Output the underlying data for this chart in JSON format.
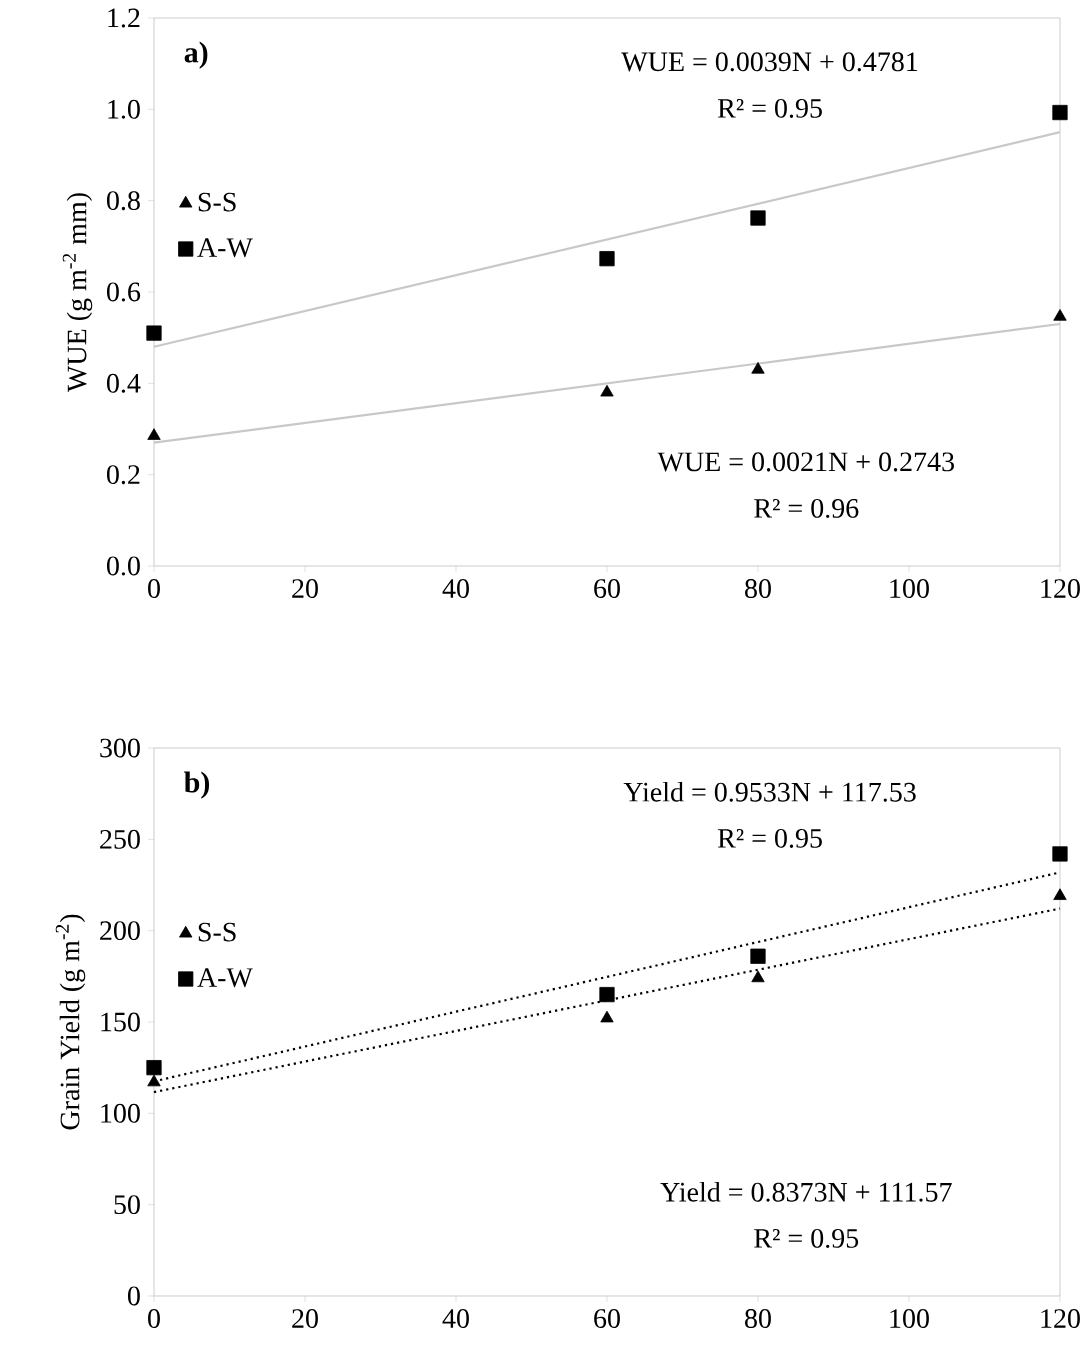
{
  "chart_data": [
    {
      "type": "scatter",
      "title": "a)",
      "ylabel": "WUE (g m$^{-2}$ mm)",
      "xlim": [
        0,
        120
      ],
      "xticks": [
        0,
        20,
        40,
        60,
        80,
        100,
        120
      ],
      "ylim": [
        0,
        1.2
      ],
      "yticks": [
        {
          "value": 0,
          "label": "0.0"
        },
        {
          "value": 0.2,
          "label": "0.2"
        },
        {
          "value": 0.4,
          "label": "0.4"
        },
        {
          "value": 0.6,
          "label": "0.6"
        },
        {
          "value": 0.8,
          "label": "0.8"
        },
        {
          "value": 1.0,
          "label": "1.0"
        },
        {
          "value": 1.2,
          "label": "1.2"
        }
      ],
      "legend": "left",
      "annotations": [
        "WUE = 0.0039N + 0.4781",
        "R² = 0.95",
        "WUE = 0.0021N + 0.2743",
        "R² = 0.96"
      ],
      "series": [
        {
          "name": "S-S",
          "marker": "triangle",
          "color": "#000000",
          "x": [
            0,
            60,
            80,
            120
          ],
          "values": [
            0.285,
            0.38,
            0.43,
            0.546
          ]
        },
        {
          "name": "A-W",
          "marker": "square",
          "color": "#000000",
          "x": [
            0,
            60,
            80,
            120
          ],
          "values": [
            0.51,
            0.673,
            0.762,
            0.993
          ]
        },
        {
          "type": "line",
          "line_style": "solid",
          "color": "#c8c8c8",
          "x": [
            0,
            120
          ],
          "values": [
            0.48,
            0.95
          ]
        },
        {
          "type": "line",
          "line_style": "solid",
          "color": "#c8c8c8",
          "x": [
            0,
            120
          ],
          "values": [
            0.27,
            0.53
          ]
        }
      ]
    },
    {
      "type": "scatter",
      "title": "b)",
      "ylabel": "Grain Yield (g m$^{-2}$)",
      "xlim": [
        0,
        120
      ],
      "xticks": [
        0,
        20,
        40,
        60,
        80,
        100,
        120
      ],
      "ylim": [
        0,
        300
      ],
      "yticks": [
        0,
        50,
        100,
        150,
        200,
        250,
        300
      ],
      "legend": "left",
      "annotations": [
        "Yield = 0.9533N + 117.53",
        "R² = 0.95",
        "Yield = 0.8373N + 111.57",
        "R² = 0.95"
      ],
      "series": [
        {
          "name": "S-S",
          "marker": "triangle",
          "color": "#000000",
          "x": [
            0,
            60,
            80,
            120
          ],
          "values": [
            117,
            152,
            174,
            219
          ]
        },
        {
          "name": "A-W",
          "marker": "square",
          "color": "#000000",
          "x": [
            0,
            60,
            80,
            120
          ],
          "values": [
            125,
            165,
            186,
            242
          ]
        },
        {
          "type": "line",
          "line_style": "dotted",
          "color": "#000000",
          "x": [
            0,
            120
          ],
          "values": [
            117.5,
            231.9
          ]
        },
        {
          "type": "line",
          "line_style": "dotted",
          "color": "#000000",
          "x": [
            0,
            120
          ],
          "values": [
            111.6,
            212.1
          ]
        }
      ]
    }
  ]
}
